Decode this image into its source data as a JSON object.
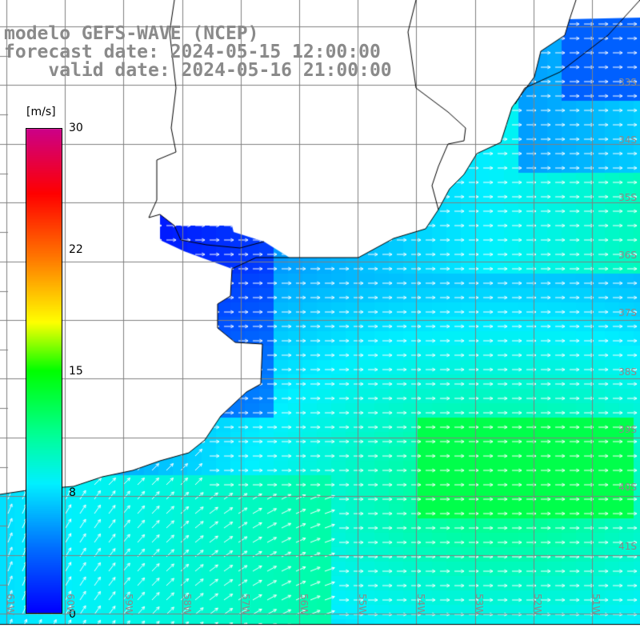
{
  "header": {
    "line1": "modelo GEFS-WAVE (NCEP)",
    "line2": "forecast date: 2024-05-15 12:00:00",
    "line3": "    valid date: 2024-05-16 21:00:00"
  },
  "colorbar": {
    "units": "[m/s]",
    "min": 0,
    "max": 30,
    "tick_labels": [
      "30",
      "22",
      "15",
      "8",
      "0"
    ],
    "tick_values": [
      30,
      22,
      15,
      8,
      0
    ],
    "colors": [
      "#0000ff",
      "#00a0ff",
      "#00ffff",
      "#00ff80",
      "#00ff00",
      "#ffff00",
      "#ff8000",
      "#ff0000",
      "#cc0088"
    ]
  },
  "map": {
    "lat_labels": [
      "33S",
      "34S",
      "35S",
      "36S",
      "37S",
      "38S",
      "39S",
      "40S",
      "41S"
    ],
    "lon_labels": [
      "61W",
      "60W",
      "59W",
      "58W",
      "57W",
      "56W",
      "55W",
      "54W",
      "53W",
      "52W",
      "51W"
    ],
    "land_color": "#ffffff",
    "grid_color": "#808080",
    "coast_color": "#000000",
    "arrow_color": "#ffffff",
    "field": "10 m wind speed",
    "wind_direction_offshore": "eastward",
    "wind_direction_southwest": "northeast"
  }
}
